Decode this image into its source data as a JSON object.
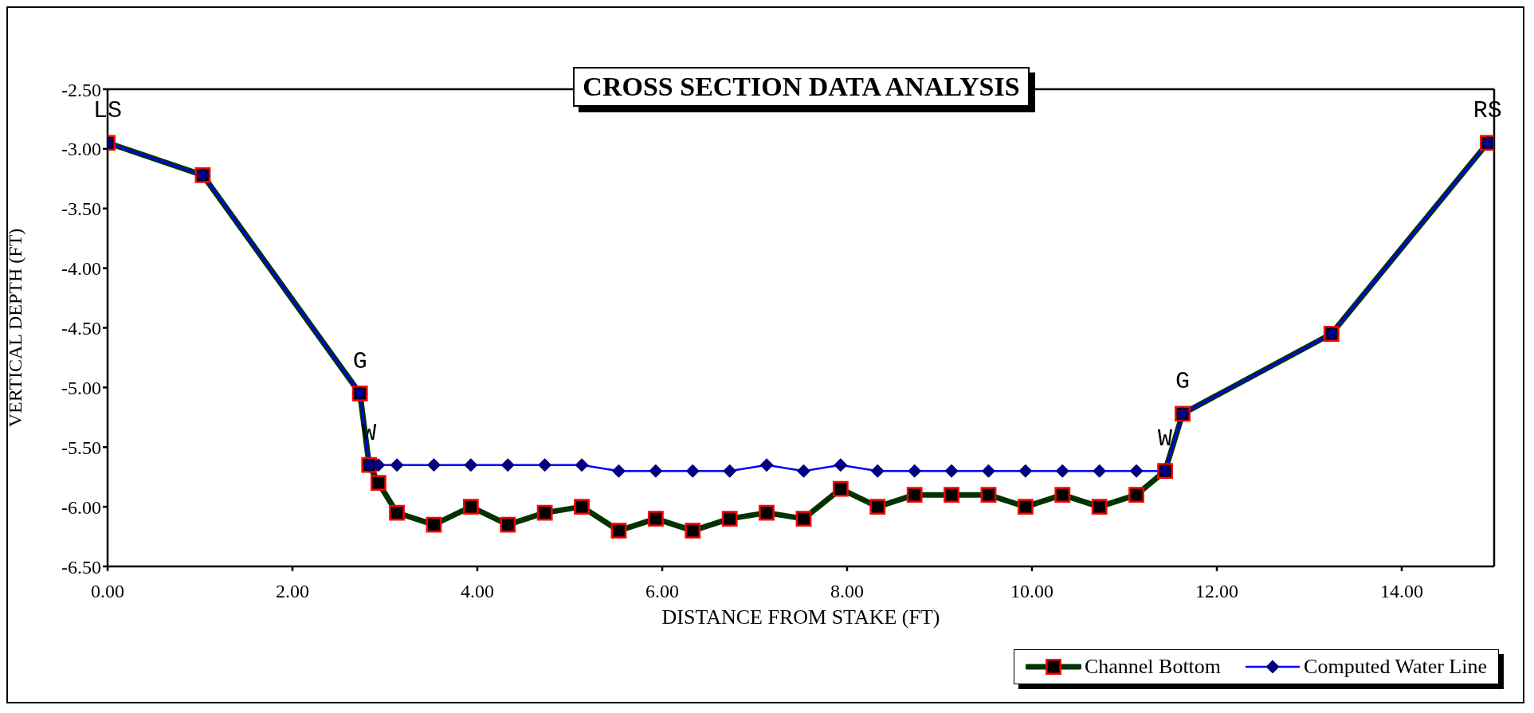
{
  "chart_data": {
    "type": "line",
    "title": "CROSS SECTION DATA ANALYSIS",
    "xlabel": "DISTANCE FROM STAKE (FT)",
    "ylabel": "VERTICAL DEPTH (FT)",
    "xlim": [
      0,
      15
    ],
    "xticks": [
      {
        "value": 0,
        "label": "0.00"
      },
      {
        "value": 2,
        "label": "2.00"
      },
      {
        "value": 4,
        "label": "4.00"
      },
      {
        "value": 6,
        "label": "6.00"
      },
      {
        "value": 8,
        "label": "8.00"
      },
      {
        "value": 10,
        "label": "10.00"
      },
      {
        "value": 12,
        "label": "12.00"
      },
      {
        "value": 14,
        "label": "14.00"
      }
    ],
    "ylim": [
      -6.5,
      -2.5
    ],
    "yticks": [
      {
        "value": -6.5,
        "label": "-6.50"
      },
      {
        "value": -6,
        "label": "-6.00"
      },
      {
        "value": -5.5,
        "label": "-5.50"
      },
      {
        "value": -5,
        "label": "-5.00"
      },
      {
        "value": -4.5,
        "label": "-4.50"
      },
      {
        "value": -4,
        "label": "-4.00"
      },
      {
        "value": -3.5,
        "label": "-3.50"
      },
      {
        "value": -3,
        "label": "-3.00"
      },
      {
        "value": -2.5,
        "label": "-2.50"
      }
    ],
    "grid": false,
    "legend": "bottom right",
    "line_style": "solid",
    "series": [
      {
        "name": "Channel Bottom",
        "color": "#003300",
        "marker": "square",
        "x": [
          0,
          1.03,
          2.73,
          2.83,
          2.93,
          3.13,
          3.53,
          3.93,
          4.33,
          4.73,
          5.13,
          5.53,
          5.93,
          6.33,
          6.73,
          7.13,
          7.53,
          7.93,
          8.33,
          8.73,
          9.13,
          9.53,
          9.93,
          10.33,
          10.73,
          11.13,
          11.44,
          11.63,
          13.24,
          14.93
        ],
        "values": [
          -2.95,
          -3.22,
          -5.05,
          -5.65,
          -5.8,
          -6.05,
          -6.15,
          -6.0,
          -6.15,
          -6.05,
          -6.0,
          -6.2,
          -6.1,
          -6.2,
          -6.1,
          -6.05,
          -6.1,
          -5.85,
          -6.0,
          -5.9,
          -5.9,
          -5.9,
          -6.0,
          -5.9,
          -6.0,
          -5.9,
          -5.7,
          -5.22,
          -4.55,
          -2.95
        ]
      },
      {
        "name": "Computed Water Line",
        "color": "#0000ff",
        "marker": "diamond",
        "x": [
          0,
          1.03,
          2.73,
          2.83,
          2.93,
          3.13,
          3.53,
          3.93,
          4.33,
          4.73,
          5.13,
          5.53,
          5.93,
          6.33,
          6.73,
          7.13,
          7.53,
          7.93,
          8.33,
          8.73,
          9.13,
          9.53,
          9.93,
          10.33,
          10.73,
          11.13,
          11.44,
          11.63,
          13.24,
          14.93
        ],
        "values": [
          -2.95,
          -3.22,
          -5.05,
          -5.65,
          -5.65,
          -5.65,
          -5.65,
          -5.65,
          -5.65,
          -5.65,
          -5.65,
          -5.7,
          -5.7,
          -5.7,
          -5.7,
          -5.65,
          -5.7,
          -5.65,
          -5.7,
          -5.7,
          -5.7,
          -5.7,
          -5.7,
          -5.7,
          -5.7,
          -5.7,
          -5.7,
          -5.22,
          -4.55,
          -2.95
        ]
      }
    ],
    "annotations": [
      {
        "text": "LS",
        "x": 0,
        "y": -2.95
      },
      {
        "text": "G",
        "x": 2.73,
        "y": -5.05
      },
      {
        "text": "W",
        "x": 2.83,
        "y": -5.65
      },
      {
        "text": "G",
        "x": 11.63,
        "y": -5.22
      },
      {
        "text": "W",
        "x": 11.44,
        "y": -5.7
      },
      {
        "text": "RS",
        "x": 14.93,
        "y": -2.95
      }
    ]
  }
}
